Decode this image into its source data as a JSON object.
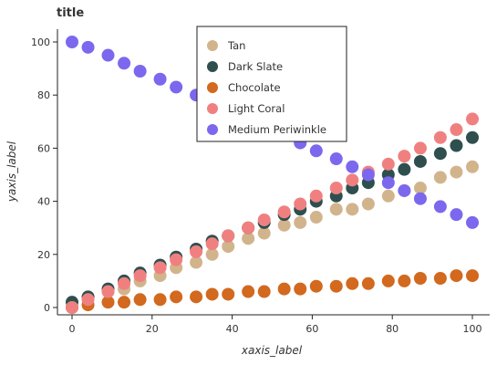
{
  "chart_data": {
    "type": "scatter",
    "title": "title",
    "xlabel": "xaxis_label",
    "ylabel": "yaxis_label",
    "xlim": [
      0,
      100
    ],
    "ylim": [
      0,
      100
    ],
    "xticks": [
      "0",
      "20",
      "40",
      "60",
      "80",
      "100"
    ],
    "yticks": [
      "0",
      "20",
      "40",
      "60",
      "80",
      "100"
    ],
    "grid": false,
    "legend_position": "top-center",
    "series": [
      {
        "name": "Tan",
        "color": "#d2b48c",
        "x": [
          0,
          4,
          9,
          13,
          17,
          22,
          26,
          31,
          35,
          39,
          44,
          48,
          53,
          57,
          61,
          66,
          70,
          74,
          79,
          83,
          87,
          92,
          96,
          100
        ],
        "y": [
          0,
          4,
          6,
          7,
          10,
          12,
          15,
          17,
          20,
          23,
          26,
          28,
          31,
          32,
          34,
          37,
          37,
          39,
          42,
          44,
          45,
          49,
          51,
          53
        ]
      },
      {
        "name": "Dark Slate",
        "color": "#2f4f4f",
        "x": [
          0,
          4,
          9,
          13,
          17,
          22,
          26,
          31,
          35,
          39,
          44,
          48,
          53,
          57,
          61,
          66,
          70,
          74,
          79,
          83,
          87,
          92,
          96,
          100
        ],
        "y": [
          2,
          4,
          7,
          10,
          13,
          16,
          19,
          22,
          25,
          27,
          30,
          32,
          35,
          37,
          40,
          42,
          45,
          47,
          50,
          52,
          55,
          58,
          61,
          64
        ]
      },
      {
        "name": "Chocolate",
        "color": "#d2691e",
        "x": [
          0,
          4,
          9,
          13,
          17,
          22,
          26,
          31,
          35,
          39,
          44,
          48,
          53,
          57,
          61,
          66,
          70,
          74,
          79,
          83,
          87,
          92,
          96,
          100
        ],
        "y": [
          0,
          1,
          2,
          2,
          3,
          3,
          4,
          4,
          5,
          5,
          6,
          6,
          7,
          7,
          8,
          8,
          9,
          9,
          10,
          10,
          11,
          11,
          12,
          12
        ]
      },
      {
        "name": "Light Coral",
        "color": "#f08080",
        "x": [
          0,
          4,
          9,
          13,
          17,
          22,
          26,
          31,
          35,
          39,
          44,
          48,
          53,
          57,
          61,
          66,
          70,
          74,
          79,
          83,
          87,
          92,
          96,
          100
        ],
        "y": [
          0,
          3,
          6,
          9,
          12,
          15,
          18,
          21,
          24,
          27,
          30,
          33,
          36,
          39,
          42,
          45,
          48,
          51,
          54,
          57,
          60,
          64,
          67,
          71
        ]
      },
      {
        "name": "Medium Periwinkle",
        "color": "#7b68ee",
        "x": [
          0,
          4,
          9,
          13,
          17,
          22,
          26,
          31,
          35,
          39,
          44,
          48,
          53,
          57,
          61,
          66,
          70,
          74,
          79,
          83,
          87,
          92,
          96,
          100
        ],
        "y": [
          100,
          98,
          95,
          92,
          89,
          86,
          83,
          80,
          77,
          74,
          71,
          68,
          65,
          62,
          59,
          56,
          53,
          50,
          47,
          44,
          41,
          38,
          35,
          32
        ]
      }
    ]
  }
}
